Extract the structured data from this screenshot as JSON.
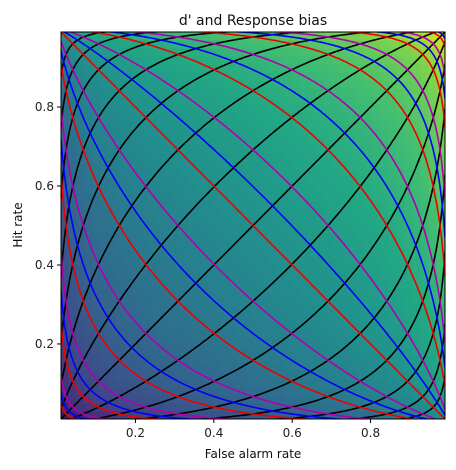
{
  "chart_data": {
    "type": "heatmap",
    "title": "d' and Response bias",
    "xlabel": "False alarm rate",
    "ylabel": "Hit rate",
    "xlim": [
      0.01,
      0.99
    ],
    "ylim": [
      0.01,
      0.99
    ],
    "xticks": [
      0.2,
      0.4,
      0.6,
      0.8
    ],
    "yticks": [
      0.2,
      0.4,
      0.6,
      0.8
    ],
    "grid": false,
    "background_colormap": "viridis",
    "series": [
      {
        "quantity": "d-prime",
        "line_color": "#000000",
        "levels": [
          -3.5,
          -3.0,
          -2.5,
          -2.0,
          -1.5,
          -1.0,
          -0.5,
          0.0,
          0.5,
          1.0,
          1.5,
          2.0,
          2.5,
          3.0,
          3.5
        ]
      },
      {
        "quantity": "response-bias",
        "line_color": "#ee0000",
        "levels": [
          -2.0,
          -1.5,
          -1.0,
          -0.5,
          0.0,
          0.5,
          1.0,
          1.5,
          2.0
        ]
      },
      {
        "quantity": "response-bias",
        "line_color": "#b000b0",
        "levels": [
          -1.75,
          -1.25,
          -0.75,
          -0.25,
          0.25,
          0.75,
          1.25,
          1.75
        ]
      },
      {
        "quantity": "response-bias",
        "line_color": "#0000ff",
        "levels": [
          -2.125,
          -1.625,
          -1.125,
          -0.625,
          -0.125,
          0.375,
          0.875,
          1.375,
          1.875
        ]
      }
    ]
  }
}
